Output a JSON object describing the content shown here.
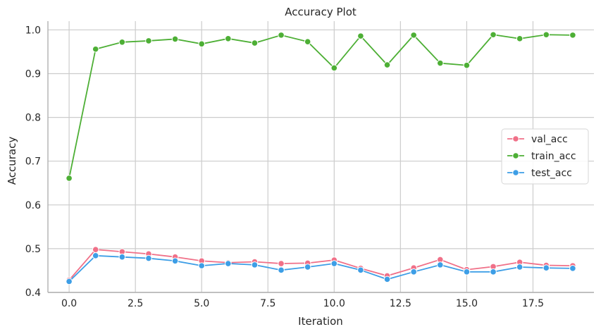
{
  "chart_data": {
    "type": "line",
    "title": "Accuracy Plot",
    "xlabel": "Iteration",
    "ylabel": "Accuracy",
    "xlim": [
      -0.8,
      19.8
    ],
    "ylim": [
      0.4,
      1.02
    ],
    "xticks": [
      0,
      2.5,
      5,
      7.5,
      10,
      12.5,
      15,
      17.5
    ],
    "xtick_labels": [
      "0.0",
      "2.5",
      "5.0",
      "7.5",
      "10.0",
      "12.5",
      "15.0",
      "17.5"
    ],
    "yticks": [
      0.4,
      0.5,
      0.6,
      0.7,
      0.8,
      0.9,
      1.0
    ],
    "ytick_labels": [
      "0.4",
      "0.5",
      "0.6",
      "0.7",
      "0.8",
      "0.9",
      "1.0"
    ],
    "grid": true,
    "legend_position": "center-right",
    "x": [
      0,
      1,
      2,
      3,
      4,
      5,
      6,
      7,
      8,
      9,
      10,
      11,
      12,
      13,
      14,
      15,
      16,
      17,
      18,
      19
    ],
    "series": [
      {
        "name": "val_acc",
        "color": "#f07088",
        "values": [
          0.428,
          0.498,
          0.493,
          0.488,
          0.481,
          0.472,
          0.468,
          0.47,
          0.466,
          0.467,
          0.474,
          0.455,
          0.438,
          0.456,
          0.475,
          0.452,
          0.459,
          0.469,
          0.462,
          0.461
        ]
      },
      {
        "name": "train_acc",
        "color": "#4daf35",
        "values": [
          0.661,
          0.956,
          0.972,
          0.975,
          0.979,
          0.968,
          0.98,
          0.97,
          0.988,
          0.973,
          0.913,
          0.986,
          0.92,
          0.988,
          0.924,
          0.919,
          0.989,
          0.98,
          0.989,
          0.988
        ]
      },
      {
        "name": "test_acc",
        "color": "#3d9ee6",
        "values": [
          0.425,
          0.484,
          0.481,
          0.478,
          0.472,
          0.461,
          0.466,
          0.463,
          0.451,
          0.458,
          0.466,
          0.451,
          0.43,
          0.447,
          0.463,
          0.447,
          0.447,
          0.458,
          0.456,
          0.455
        ]
      }
    ]
  }
}
